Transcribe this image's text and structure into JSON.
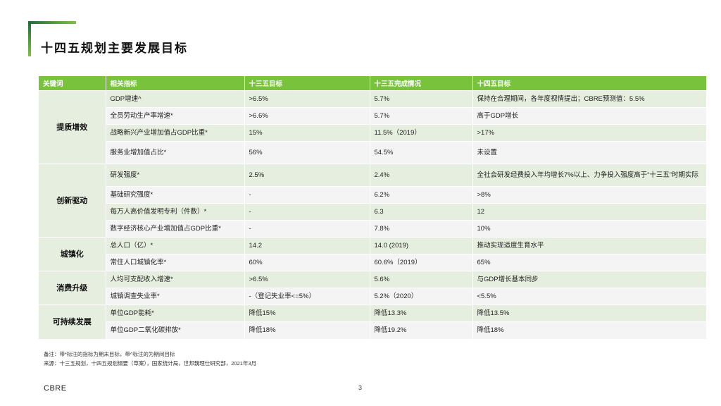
{
  "title": "十四五规划主要发展目标",
  "table": {
    "headers": [
      "关键词",
      "相关指标",
      "十三五目标",
      "十三五完成情况",
      "十四五目标"
    ],
    "groups": [
      {
        "name": "提质增效",
        "rows": [
          {
            "indicator": "GDP增速^",
            "target13": ">6.5%",
            "actual13": "5.7%",
            "target14": "保持在合理期间，各年度视情提出；CBRE预测值：5.5%"
          },
          {
            "indicator": "全员劳动生产率增速*",
            "target13": ">6.6%",
            "actual13": "5.7%",
            "target14": "高于GDP增长"
          },
          {
            "indicator": "战略新兴产业增加值占GDP比重*",
            "target13": "15%",
            "actual13": "11.5%（2019）",
            "target14": ">17%"
          },
          {
            "indicator": "服务业增加值占比*",
            "target13": "56%",
            "actual13": "54.5%",
            "target14": "未设置"
          }
        ]
      },
      {
        "name": "创新驱动",
        "rows": [
          {
            "indicator": "研发强度*",
            "target13": "2.5%",
            "actual13": "2.4%",
            "target14": "全社会研发经费投入年均增长7%以上、力争投入强度高于“十三五”时期实际"
          },
          {
            "indicator": "基础研究强度*",
            "target13": "-",
            "actual13": "6.2%",
            "target14": ">8%"
          },
          {
            "indicator": "每万人高价值发明专利（件数）*",
            "target13": "-",
            "actual13": "6.3",
            "target14": "12"
          },
          {
            "indicator": "数字经济核心产业增加值占GDP比重*",
            "target13": "-",
            "actual13": "7.8%",
            "target14": "10%"
          }
        ]
      },
      {
        "name": "城镇化",
        "rows": [
          {
            "indicator": "总人口（亿）*",
            "target13": "14.2",
            "actual13": "14.0 (2019)",
            "target14": "推动实现适度生育水平"
          },
          {
            "indicator": "常住人口城镇化率*",
            "target13": "60%",
            "actual13": "60.6%（2019）",
            "target14": "65%"
          }
        ]
      },
      {
        "name": "消费升级",
        "rows": [
          {
            "indicator": "人均可支配收入增速*",
            "target13": ">6.5%",
            "actual13": "5.6%",
            "target14": "与GDP增长基本同步"
          },
          {
            "indicator": "城镇调查失业率*",
            "target13": "-（登记失业率<=5%）",
            "actual13": "5.2%（2020）",
            "target14": "<5.5%"
          }
        ]
      },
      {
        "name": "可持续发展",
        "rows": [
          {
            "indicator": "单位GDP能耗*",
            "target13": "降低15%",
            "actual13": "降低13.3%",
            "target14": "降低13.5%"
          },
          {
            "indicator": "单位GDP二氧化碳排放*",
            "target13": "降低18%",
            "actual13": "降低19.2%",
            "target14": "降低18%"
          }
        ]
      }
    ]
  },
  "notes": {
    "line1": "备注：带*标注的指标为期末目标，带^标注的为期间目标",
    "line2": "来源：十三五规划，十四五规划纲要（草案），国家统计局，世邦魏理仕研究部，2021年3月"
  },
  "footer": {
    "brand": "CBRE",
    "page": "3"
  }
}
